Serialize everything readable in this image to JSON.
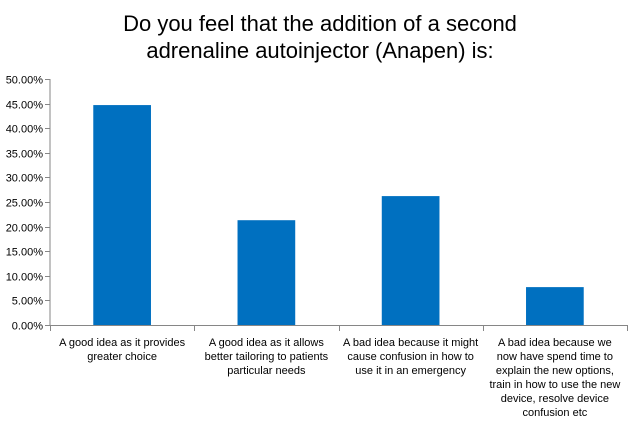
{
  "chart_data": {
    "type": "bar",
    "title_lines": [
      "Do you feel that the addition of a second",
      "adrenaline autoinjector (Anapen) is:"
    ],
    "categories": [
      "A good idea as it provides greater choice",
      "A good idea as it allows better tailoring to patients particular needs",
      "A bad idea because it might cause confusion in how to use it in an emergency",
      "A bad idea because we now have spend time to explain the new options, train in how to use the new device, resolve device confusion etc"
    ],
    "values": [
      44.7,
      21.3,
      26.2,
      7.7
    ],
    "ylim": [
      0,
      50
    ],
    "y_ticks": [
      "0.00%",
      "5.00%",
      "10.00%",
      "15.00%",
      "20.00%",
      "25.00%",
      "30.00%",
      "35.00%",
      "40.00%",
      "45.00%",
      "50.00%"
    ],
    "grid": false,
    "legend": "none",
    "bar_color": "#0070C0"
  }
}
